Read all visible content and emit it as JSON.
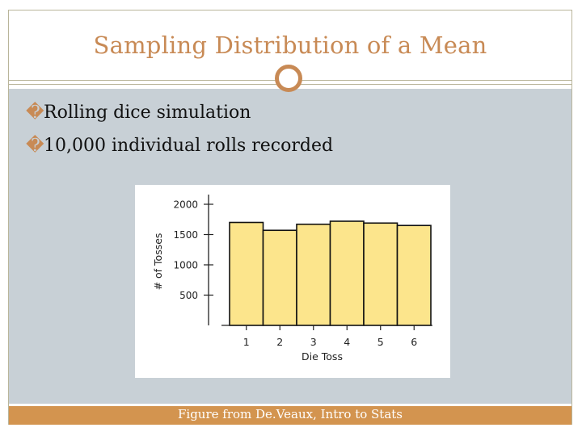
{
  "slide": {
    "title": "Sampling Distribution of a Mean",
    "bullets": [
      "Rolling dice simulation",
      "10,000 individual rolls recorded"
    ],
    "bullet_glyph": "�",
    "footer": "Figure from De.Veaux, Intro to Stats",
    "accent_color": "#c88a55",
    "footer_color": "#d3944f",
    "content_bg": "#c8d0d6"
  },
  "chart_data": {
    "type": "bar",
    "categories": [
      "1",
      "2",
      "3",
      "4",
      "5",
      "6"
    ],
    "values": [
      1700,
      1570,
      1670,
      1720,
      1690,
      1650
    ],
    "xlabel": "Die Toss",
    "ylabel": "# of Tosses",
    "yticks": [
      500,
      1000,
      1500,
      2000
    ],
    "ylim": [
      0,
      2150
    ],
    "bar_color": "#fce58c"
  }
}
